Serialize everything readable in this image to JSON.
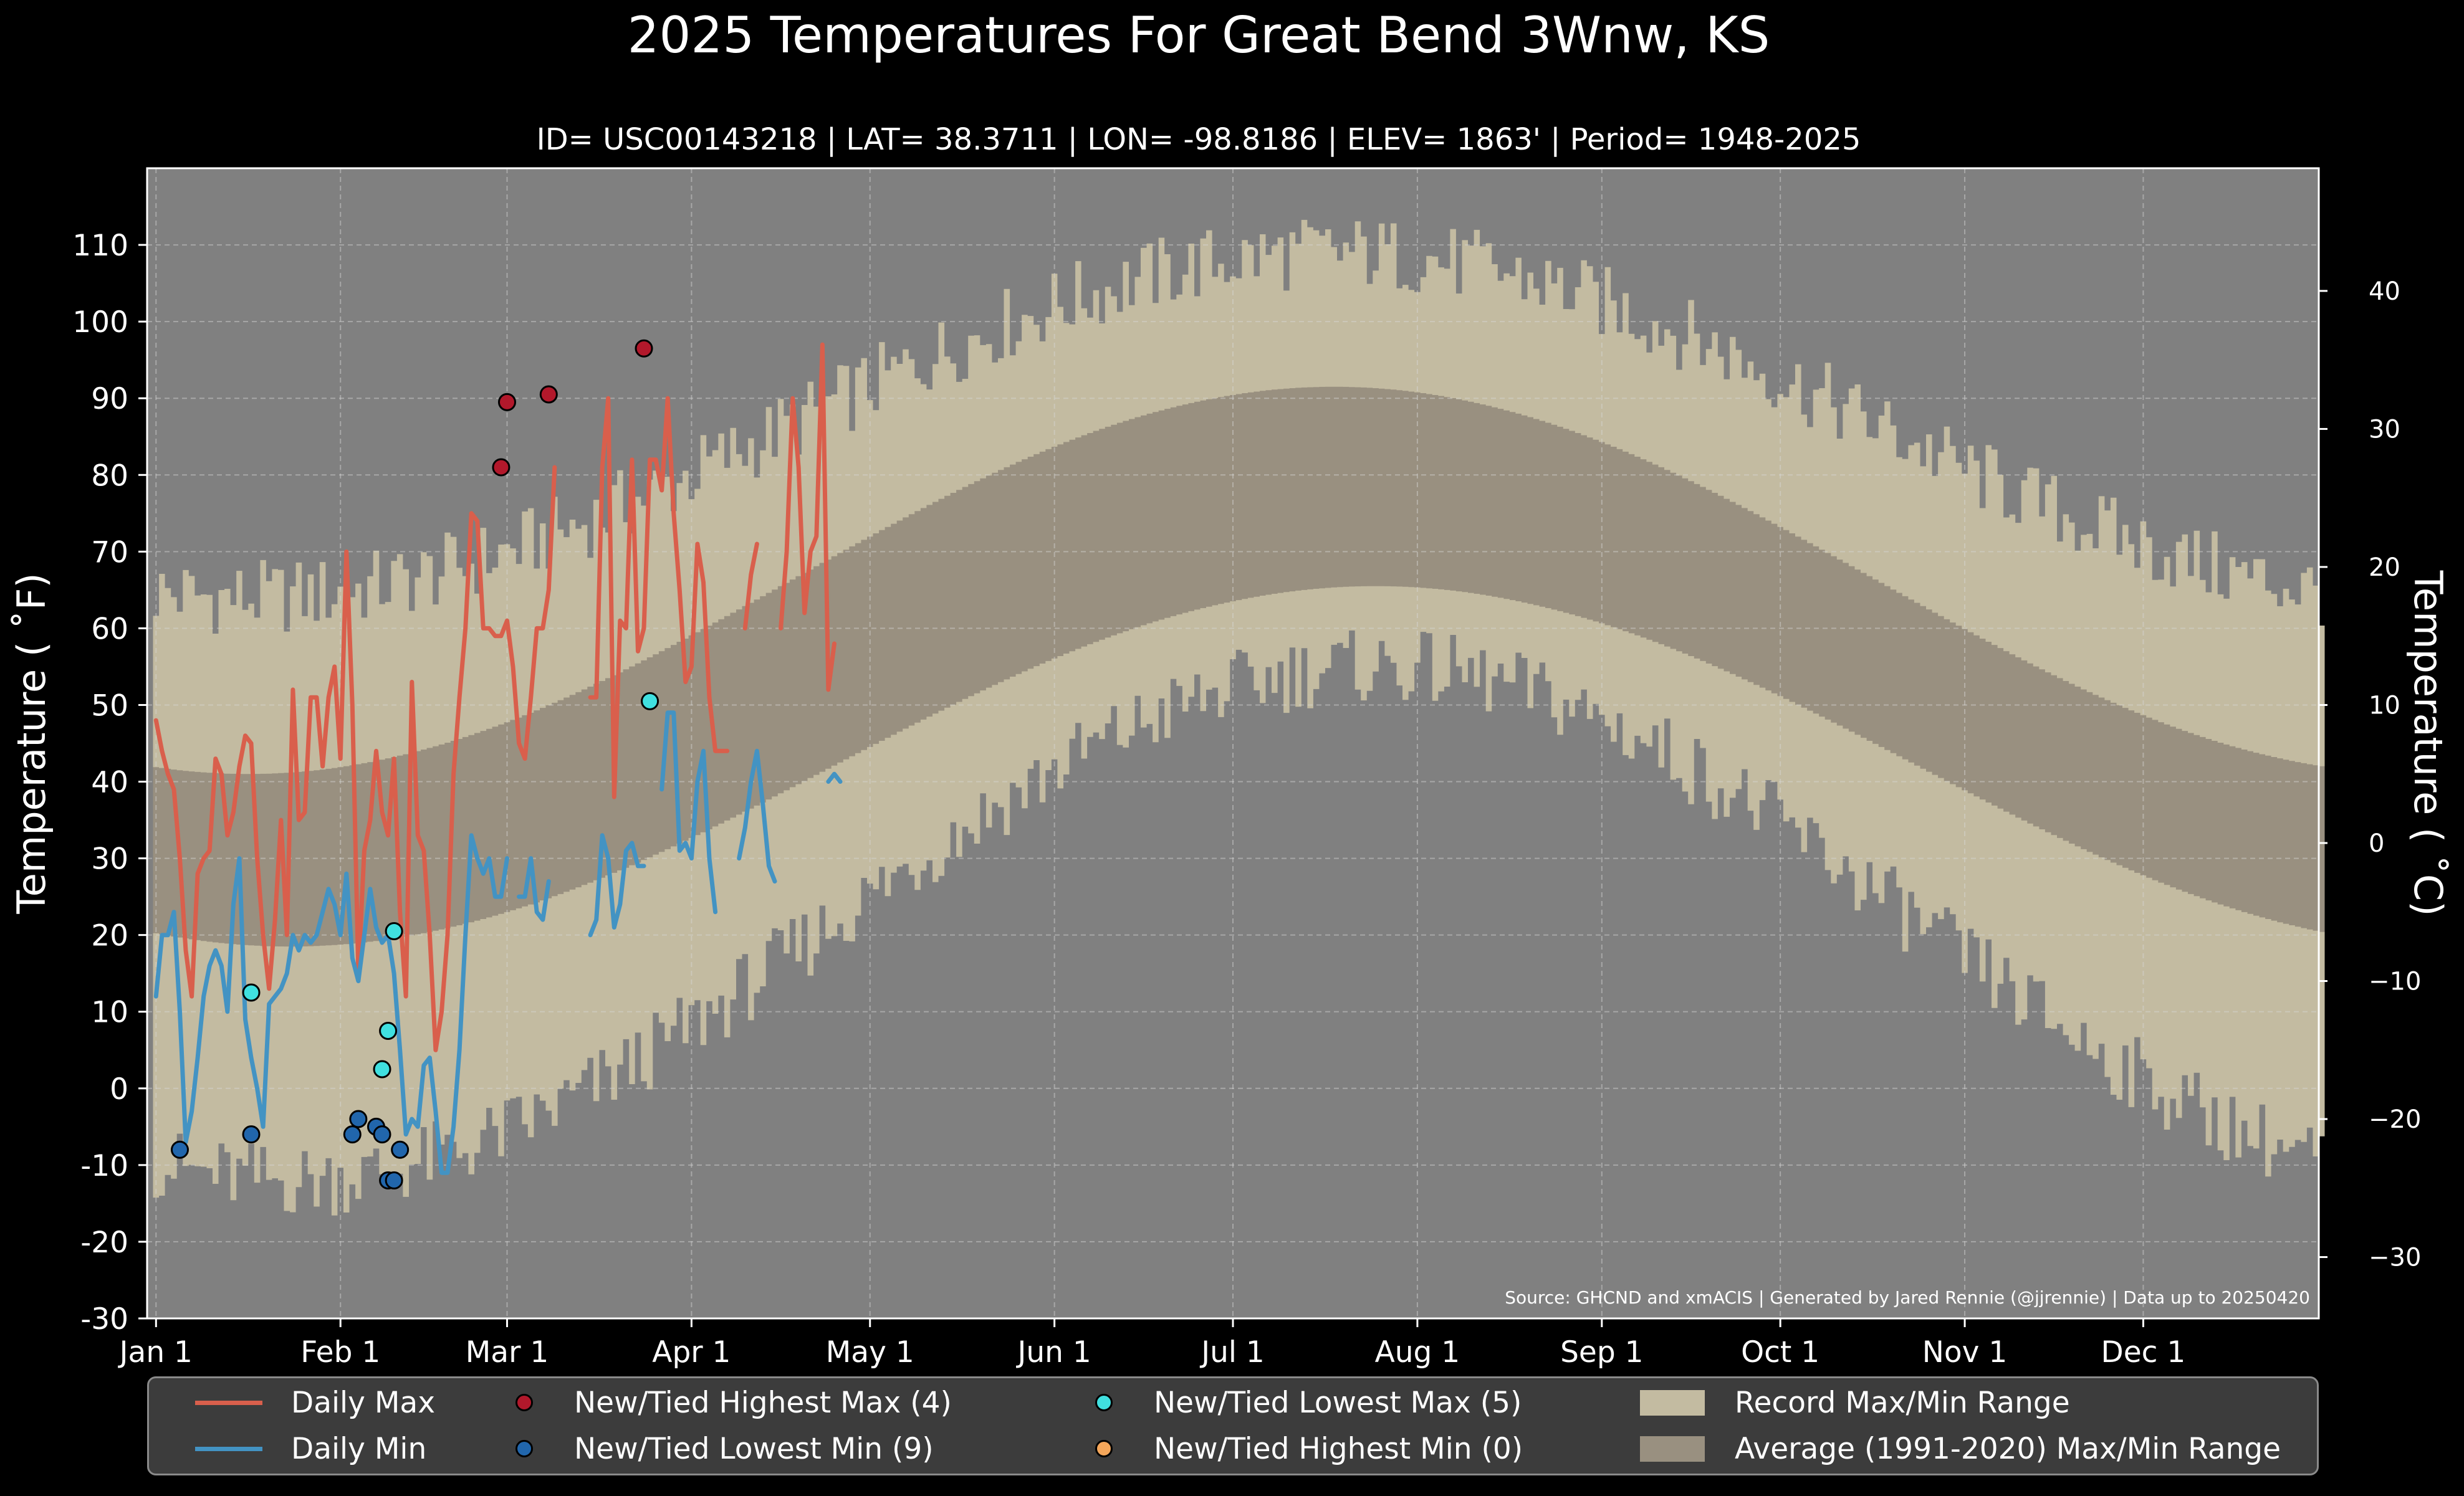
{
  "chart_data": {
    "type": "line",
    "title": "2025 Temperatures For Great Bend 3Wnw, KS",
    "subtitle": "ID= USC00143218 | LAT= 38.3711 | LON= -98.8186 | ELEV= 1863' | Period= 1948-2025",
    "ylabel": "Temperature ( $^\\circ$F)",
    "ylabel_text": "Temperature ( ˚F)",
    "ylabel_right": "Temperature ( ˚C)",
    "source": "Source: GHCND and xmACIS | Generated by Jared Rennie (@jjrennie) | Data up to 20250420",
    "ylim": [
      -30,
      120
    ],
    "xlim": [
      -1.5,
      363.5
    ],
    "y_ticks": [
      -30,
      -20,
      -10,
      0,
      10,
      20,
      30,
      40,
      50,
      60,
      70,
      80,
      90,
      100,
      110
    ],
    "y_ticks_c": [
      -30,
      -20,
      -10,
      0,
      10,
      20,
      30,
      40
    ],
    "x_ticks": [
      {
        "label": "Jan 1",
        "day": 0
      },
      {
        "label": "Feb 1",
        "day": 31
      },
      {
        "label": "Mar 1",
        "day": 59
      },
      {
        "label": "Apr 1",
        "day": 90
      },
      {
        "label": "May 1",
        "day": 120
      },
      {
        "label": "Jun 1",
        "day": 151
      },
      {
        "label": "Jul 1",
        "day": 181
      },
      {
        "label": "Aug 1",
        "day": 212
      },
      {
        "label": "Sep 1",
        "day": 243
      },
      {
        "label": "Oct 1",
        "day": 273
      },
      {
        "label": "Nov 1",
        "day": 304
      },
      {
        "label": "Dec 1",
        "day": 334
      }
    ],
    "grid": true,
    "colors": {
      "background": "#000000",
      "plot_bg": "#808080",
      "record_band": "#c3bba1",
      "normal_band": "#999080",
      "daily_max": "#d95f4c",
      "daily_min": "#4393c3",
      "new_high_max": "#b2182b",
      "new_low_min": "#2166ac",
      "new_low_max": "#40e0e0",
      "new_high_min": "#f4a65a"
    },
    "record_max_curve": {
      "min": 64,
      "peak": 109,
      "peak_day": 198
    },
    "record_min_curve": {
      "min": -12,
      "peak": 55,
      "peak_day": 205
    },
    "normal_max_curve": {
      "min": 41,
      "peak": 91.5,
      "peak_day": 198
    },
    "normal_min_curve": {
      "min": 18.5,
      "peak": 65.5,
      "peak_day": 205
    },
    "series": [
      {
        "name": "Daily Max",
        "values": [
          48,
          44,
          41,
          39,
          30,
          18,
          12,
          28,
          30,
          31,
          43,
          41,
          33,
          36,
          42,
          46,
          45,
          30,
          20,
          13,
          22,
          35,
          20,
          52,
          35,
          36,
          51,
          51,
          42,
          51,
          55,
          43,
          70,
          50,
          15,
          31,
          35,
          44,
          36,
          33,
          43,
          23,
          12,
          53,
          33,
          31,
          20,
          5,
          10,
          20,
          41,
          51,
          60,
          75,
          74,
          60,
          60,
          59,
          59,
          61,
          55,
          45,
          43,
          51,
          60,
          60,
          65,
          81,
          null,
          null,
          null,
          null,
          null,
          51,
          51,
          81,
          90,
          38,
          61,
          60,
          82,
          57,
          60,
          82,
          82,
          78,
          90,
          75,
          65,
          53,
          55,
          71,
          66,
          51,
          44,
          44,
          44,
          null,
          null,
          60,
          67,
          71,
          null,
          null,
          null,
          60,
          70,
          90,
          81,
          62,
          70,
          72,
          97,
          52,
          58
        ]
      },
      {
        "name": "Daily Min",
        "values": [
          12,
          20,
          20,
          23,
          10,
          -7,
          -3,
          4,
          12,
          16,
          18,
          16,
          10,
          24,
          30,
          9,
          4,
          0,
          -5,
          11,
          12,
          13,
          15,
          20,
          18,
          20,
          19,
          20,
          23,
          26,
          24,
          20,
          28,
          17,
          14,
          20,
          26,
          21,
          19,
          20,
          15,
          5,
          -6,
          -4,
          -5,
          3,
          4,
          -3,
          -11,
          -11,
          -5,
          5,
          20,
          33,
          30,
          28,
          30,
          25,
          25,
          30,
          null,
          25,
          25,
          30,
          23,
          22,
          27,
          null,
          null,
          null,
          null,
          null,
          null,
          20,
          22,
          33,
          30,
          21,
          24,
          31,
          32,
          29,
          29,
          null,
          null,
          39,
          49,
          49,
          31,
          32,
          30,
          40,
          44,
          30,
          23,
          null,
          null,
          null,
          30,
          34,
          40,
          44,
          37,
          29,
          27,
          null,
          null,
          null,
          null,
          null,
          null,
          null,
          null,
          40,
          41,
          40
        ]
      }
    ],
    "points": {
      "new_high_max": [
        [
          58,
          81
        ],
        [
          59,
          89.5
        ],
        [
          66,
          90.5
        ],
        [
          82,
          96.5
        ]
      ],
      "new_low_min": [
        [
          4,
          -8
        ],
        [
          16,
          -6
        ],
        [
          33,
          -6
        ],
        [
          34,
          -4
        ],
        [
          37,
          -5
        ],
        [
          38,
          -6
        ],
        [
          39,
          -12
        ],
        [
          40,
          -12
        ],
        [
          41,
          -8
        ]
      ],
      "new_low_max": [
        [
          16,
          12.5
        ],
        [
          38,
          2.5
        ],
        [
          39,
          7.5
        ],
        [
          40,
          20.5
        ],
        [
          83,
          50.5
        ]
      ],
      "new_high_min": []
    }
  },
  "legend": {
    "daily_max": "Daily Max",
    "daily_min": "Daily Min",
    "new_high_max": "New/Tied Highest Max (4)",
    "new_low_min": "New/Tied Lowest Min (9)",
    "new_low_max": "New/Tied Lowest Max (5)",
    "new_high_min": "New/Tied Highest Min (0)",
    "record_range": "Record Max/Min Range",
    "normal_range": "Average (1991-2020) Max/Min Range"
  }
}
